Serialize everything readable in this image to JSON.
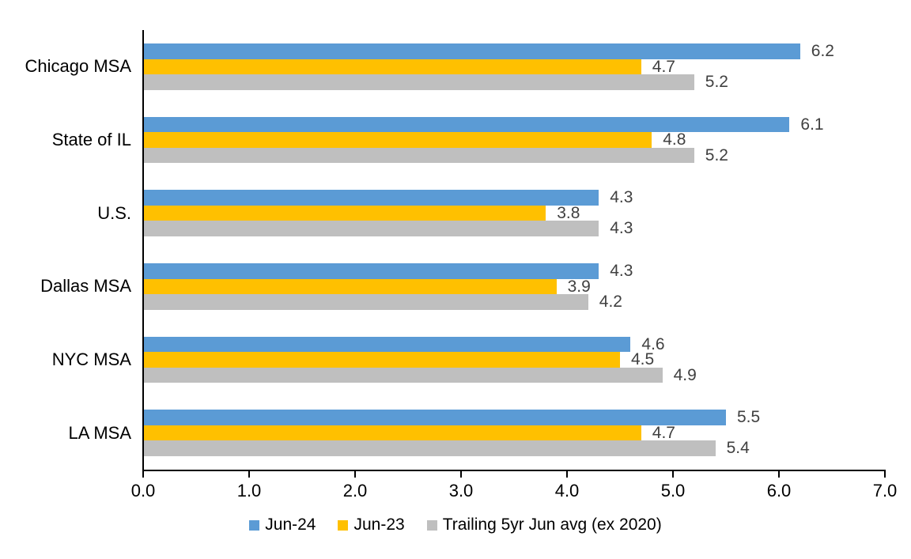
{
  "chart_data": {
    "type": "bar",
    "orientation": "horizontal",
    "categories": [
      "Chicago MSA",
      "State of IL",
      "U.S.",
      "Dallas MSA",
      "NYC MSA",
      "LA MSA"
    ],
    "series": [
      {
        "name": "Jun-24",
        "color": "#5B9BD5",
        "values": [
          6.2,
          6.1,
          4.3,
          4.3,
          4.6,
          5.5
        ]
      },
      {
        "name": "Jun-23",
        "color": "#FFC000",
        "values": [
          4.7,
          4.8,
          3.8,
          3.9,
          4.5,
          4.7
        ]
      },
      {
        "name": "Trailing 5yr Jun avg (ex 2020)",
        "color": "#BFBFBF",
        "values": [
          5.2,
          5.2,
          4.3,
          4.2,
          4.9,
          5.4
        ]
      }
    ],
    "xlim": [
      0,
      7
    ],
    "x_ticks": [
      "0.0",
      "1.0",
      "2.0",
      "3.0",
      "4.0",
      "5.0",
      "6.0",
      "7.0"
    ],
    "value_labels": true,
    "value_label_color": "#404040",
    "axis_color": "#000000",
    "grid": false,
    "legend_position": "bottom"
  }
}
